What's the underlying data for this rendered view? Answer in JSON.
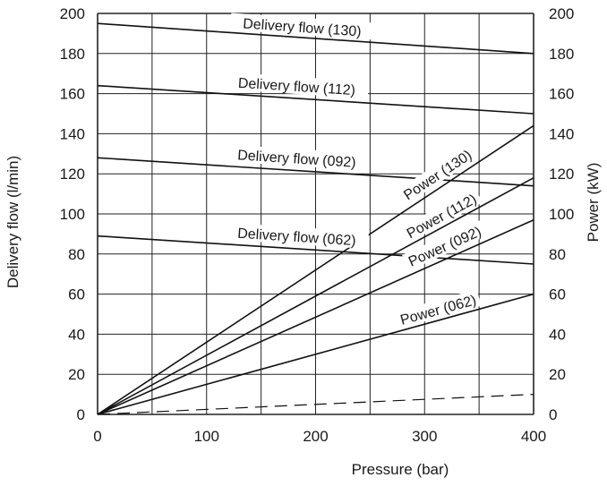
{
  "chart_data": {
    "type": "line",
    "title": "",
    "xlabel": "Pressure (bar)",
    "ylabel": "Delivery flow (l/min)",
    "y2label": "Power (kW)",
    "xlim": [
      0,
      400
    ],
    "ylim": [
      0,
      200
    ],
    "y2lim": [
      0,
      200
    ],
    "x_ticks": [
      "0",
      "100",
      "200",
      "300",
      "400"
    ],
    "y_ticks": [
      "0",
      "20",
      "40",
      "60",
      "80",
      "100",
      "120",
      "140",
      "160",
      "180",
      "200"
    ],
    "y2_ticks": [
      "0",
      "20",
      "40",
      "60",
      "80",
      "100",
      "120",
      "140",
      "160",
      "180",
      "200"
    ],
    "grid": true,
    "legend": "none",
    "series": [
      {
        "name": "Delivery flow (130)",
        "kind": "flow",
        "x": [
          0,
          400
        ],
        "y": [
          195,
          180
        ]
      },
      {
        "name": "Delivery flow (112)",
        "kind": "flow",
        "x": [
          0,
          400
        ],
        "y": [
          164,
          150
        ]
      },
      {
        "name": "Delivery flow (092)",
        "kind": "flow",
        "x": [
          0,
          400
        ],
        "y": [
          128,
          114
        ]
      },
      {
        "name": "Delivery flow (062)",
        "kind": "flow",
        "x": [
          0,
          400
        ],
        "y": [
          89,
          75
        ]
      },
      {
        "name": "Power (130)",
        "kind": "power",
        "x": [
          0,
          400
        ],
        "y": [
          0,
          144
        ]
      },
      {
        "name": "Power (112)",
        "kind": "power",
        "x": [
          0,
          400
        ],
        "y": [
          0,
          118
        ]
      },
      {
        "name": "Power (092)",
        "kind": "power",
        "x": [
          0,
          400
        ],
        "y": [
          0,
          97
        ]
      },
      {
        "name": "Power (062)",
        "kind": "power",
        "x": [
          0,
          400
        ],
        "y": [
          0,
          60
        ]
      },
      {
        "name": "",
        "kind": "dashed",
        "x": [
          0,
          400
        ],
        "y": [
          0,
          10
        ]
      }
    ]
  }
}
